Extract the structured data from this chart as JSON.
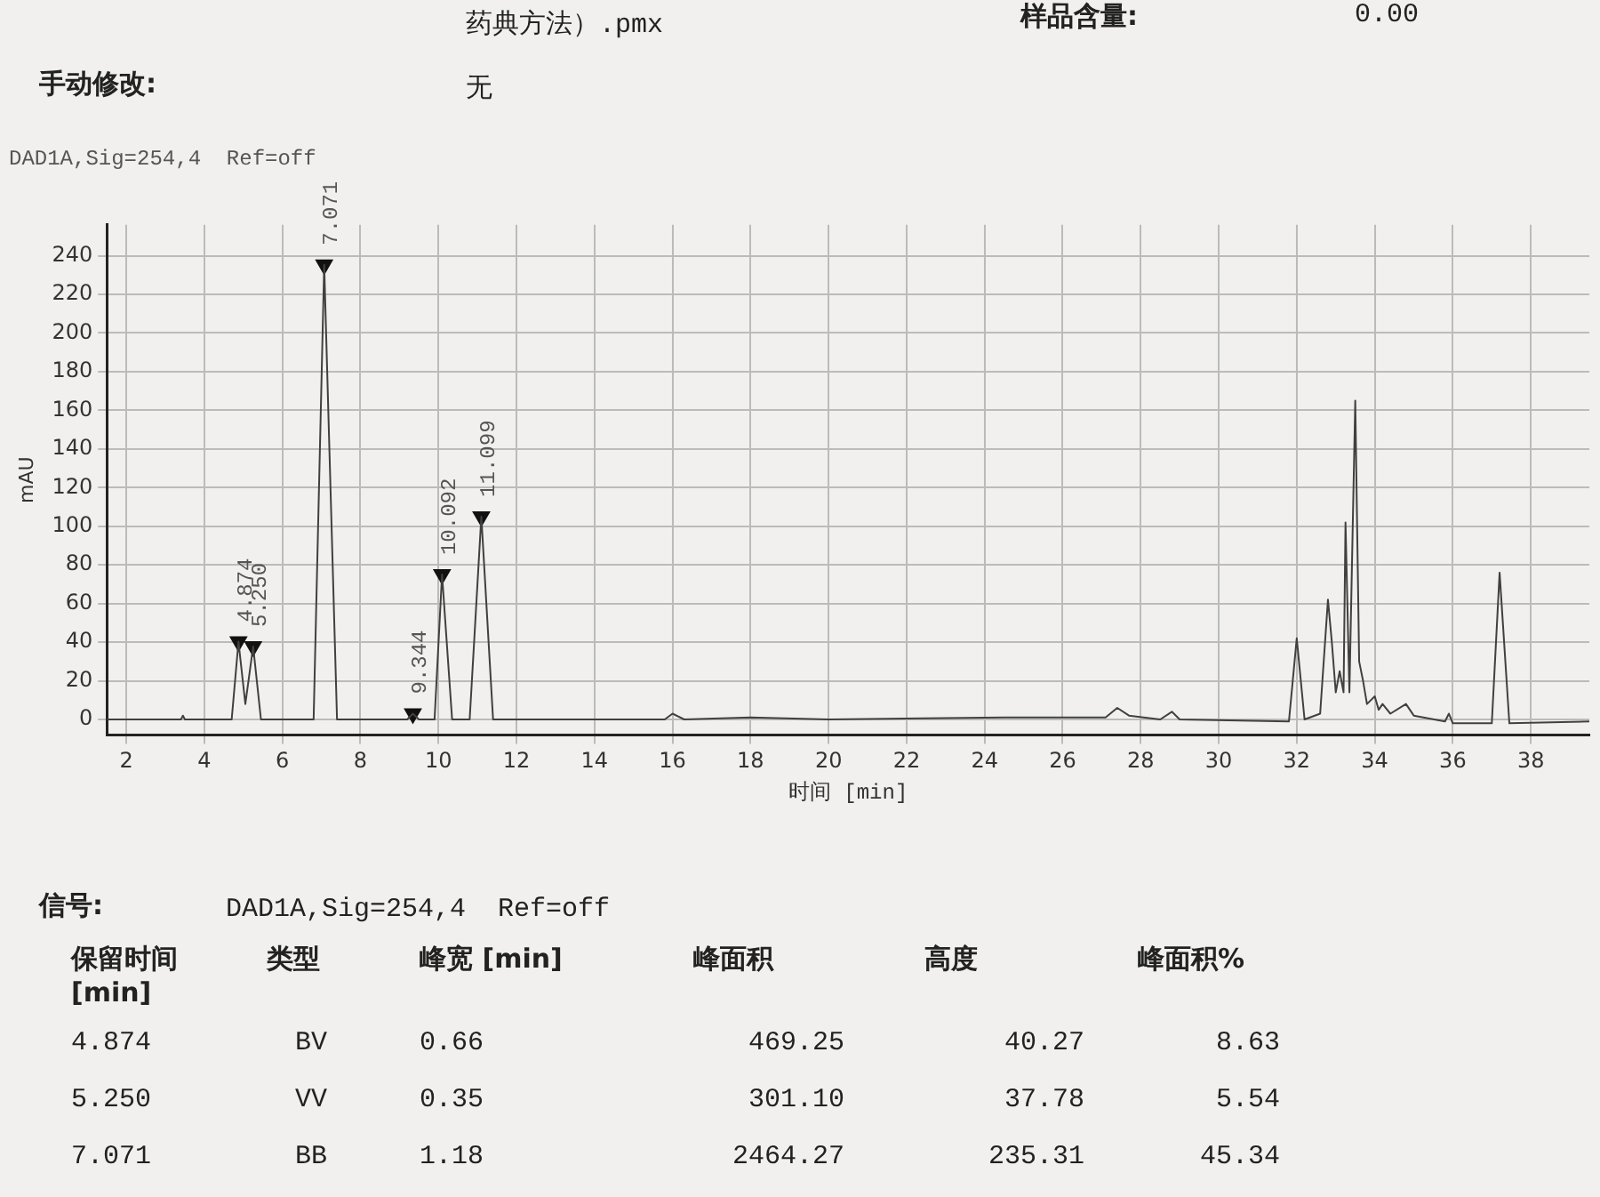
{
  "chart_data": {
    "type": "line",
    "title": "DAD1A,Sig=254,4  Ref=off",
    "xlabel": "时间 [min]",
    "ylabel": "mAU",
    "xlim": [
      1.5,
      39.5
    ],
    "xticks": [
      2,
      4,
      6,
      8,
      10,
      12,
      14,
      16,
      18,
      20,
      22,
      24,
      26,
      28,
      30,
      32,
      34,
      36,
      38
    ],
    "ylim": [
      -8,
      256
    ],
    "yticks": [
      0,
      20,
      40,
      60,
      80,
      100,
      120,
      140,
      160,
      180,
      200,
      220,
      240
    ],
    "grid": true,
    "legend": false,
    "marker": "none",
    "line_style": "solid",
    "series": [
      {
        "color": "#404040",
        "x": [
          1.5,
          3.4,
          3.45,
          3.5,
          4.7,
          4.874,
          5.05,
          5.25,
          5.45,
          6.8,
          7.071,
          7.4,
          9.2,
          9.344,
          9.5,
          9.9,
          10.092,
          10.35,
          10.8,
          11.099,
          11.4,
          15.8,
          16.0,
          16.3,
          18,
          20,
          24.5,
          27.1,
          27.4,
          27.7,
          28.5,
          28.8,
          29,
          31.8,
          32.0,
          32.2,
          32.6,
          32.8,
          32.9,
          33.0,
          33.1,
          33.2,
          33.25,
          33.35,
          33.5,
          33.6,
          33.7,
          33.8,
          34.0,
          34.1,
          34.2,
          34.4,
          34.8,
          35,
          35.8,
          35.9,
          36.0,
          37.0,
          37.2,
          37.45,
          39.5
        ],
        "values": [
          0,
          0,
          2,
          0,
          0,
          40.27,
          8,
          37.78,
          0,
          0,
          235.31,
          0,
          0,
          3,
          0,
          0,
          75,
          0,
          0,
          105,
          0,
          0,
          3,
          0,
          1,
          0,
          1,
          1,
          6,
          2,
          0,
          4,
          0,
          -1,
          42,
          0,
          3,
          62,
          40,
          14,
          25,
          14,
          102,
          14,
          165,
          30,
          20,
          8,
          12,
          5,
          8,
          3,
          8,
          2,
          -1,
          3,
          -2,
          -2,
          76,
          -2,
          -1
        ]
      },
      {
        "type": "scatter",
        "color": "#111111",
        "marker": "triangle",
        "x": [
          4.874,
          5.25,
          7.071,
          9.344,
          10.092,
          11.099
        ],
        "values": [
          40.27,
          37.78,
          235.31,
          3,
          75,
          105
        ]
      }
    ],
    "annotations": [
      {
        "text": "4.874",
        "x": 4.874,
        "y": 40.27
      },
      {
        "text": "5.250",
        "x": 5.25,
        "y": 37.78
      },
      {
        "text": "7.071",
        "x": 7.071,
        "y": 235.31
      },
      {
        "text": "9.344",
        "x": 9.344,
        "y": 3
      },
      {
        "text": "10.092",
        "x": 10.092,
        "y": 75
      },
      {
        "text": "11.099",
        "x": 11.099,
        "y": 105
      },
      "药典方法）.pmx",
      "样品含量:",
      "0.00",
      "手动修改:",
      "无",
      "信号:",
      "DAD1A,Sig=254,4  Ref=off",
      "保留时间\n[min]",
      "类型",
      "峰宽 [min]",
      "峰面积",
      "高度",
      "峰面积%",
      "4.874",
      "BV",
      "0.66",
      "469.25",
      "40.27",
      "8.63",
      "5.250",
      "VV",
      "0.35",
      "301.10",
      "37.78",
      "5.54",
      "7.071",
      "BB",
      "1.18",
      "2464.27",
      "235.31",
      "45.34"
    ]
  }
}
